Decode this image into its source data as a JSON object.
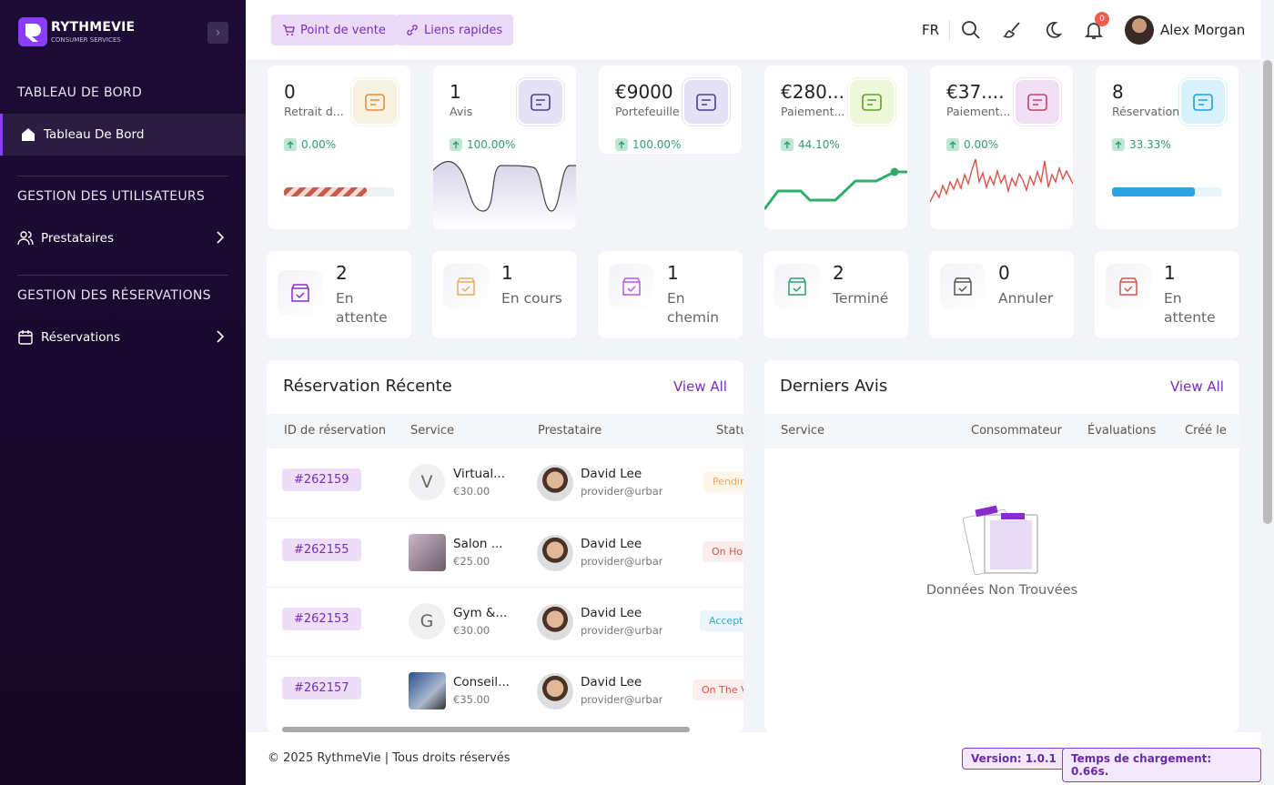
{
  "sidebar": {
    "brand": "RYTHMEVIE",
    "brand_sub": "CONSUMER SERVICES",
    "sections": [
      {
        "title": "TABLEAU DE BORD",
        "item": "Tableau De Bord"
      },
      {
        "title": "GESTION DES UTILISATEURS",
        "item": "Prestataires"
      },
      {
        "title": "GESTION DES RÉSERVATIONS",
        "item": "Réservations"
      }
    ]
  },
  "topbar": {
    "buttons": [
      "Point de vente",
      "Liens rapides"
    ],
    "lang": "FR",
    "notifications": "0",
    "user": "Alex Morgan"
  },
  "stats": [
    {
      "value": "0",
      "label": "Retrait d...",
      "change": "0.00%"
    },
    {
      "value": "1",
      "label": "Avis",
      "change": "100.00%"
    },
    {
      "value": "€9000",
      "label": "Portefeuille",
      "change": "100.00%"
    },
    {
      "value": "€280...",
      "label": "Paiement...",
      "change": "44.10%"
    },
    {
      "value": "€37....",
      "label": "Paiement...",
      "change": "0.00%"
    },
    {
      "value": "8",
      "label": "Réservation",
      "change": "33.33%"
    }
  ],
  "status_cards": [
    {
      "count": "2",
      "label": "En attente"
    },
    {
      "count": "1",
      "label": "En cours"
    },
    {
      "count": "1",
      "label": "En chemin"
    },
    {
      "count": "2",
      "label": "Terminé"
    },
    {
      "count": "0",
      "label": "Annuler"
    },
    {
      "count": "1",
      "label": "En attente"
    }
  ],
  "recent": {
    "title": "Réservation Récente",
    "view_all": "View All",
    "columns": [
      "ID de réservation",
      "Service",
      "Prestataire",
      "Statu"
    ],
    "rows": [
      {
        "id": "#262159",
        "avatar": "V",
        "service": "Virtual...",
        "price": "€30.00",
        "provider": "David Lee",
        "email": "provider@urbanp",
        "status": "Pendin"
      },
      {
        "id": "#262155",
        "service": "Salon ...",
        "price": "€25.00",
        "provider": "David Lee",
        "email": "provider@urbanp",
        "status": "On Ho"
      },
      {
        "id": "#262153",
        "avatar": "G",
        "service": "Gym &...",
        "price": "€30.00",
        "provider": "David Lee",
        "email": "provider@urbanp",
        "status": "Accept"
      },
      {
        "id": "#262157",
        "service": "Conseil...",
        "price": "€35.00",
        "provider": "David Lee",
        "email": "provider@urbanp",
        "status": "On The V"
      }
    ]
  },
  "reviews": {
    "title": "Derniers Avis",
    "view_all": "View All",
    "columns": [
      "Service",
      "Consommateur",
      "Évaluations",
      "Créé le"
    ],
    "empty": "Données Non Trouvées"
  },
  "footer": {
    "copyright": "© 2025 RythmeVie | Tous droits réservés",
    "version": "Version: 1.0.1",
    "load": "Temps de chargement: 0.66s."
  }
}
